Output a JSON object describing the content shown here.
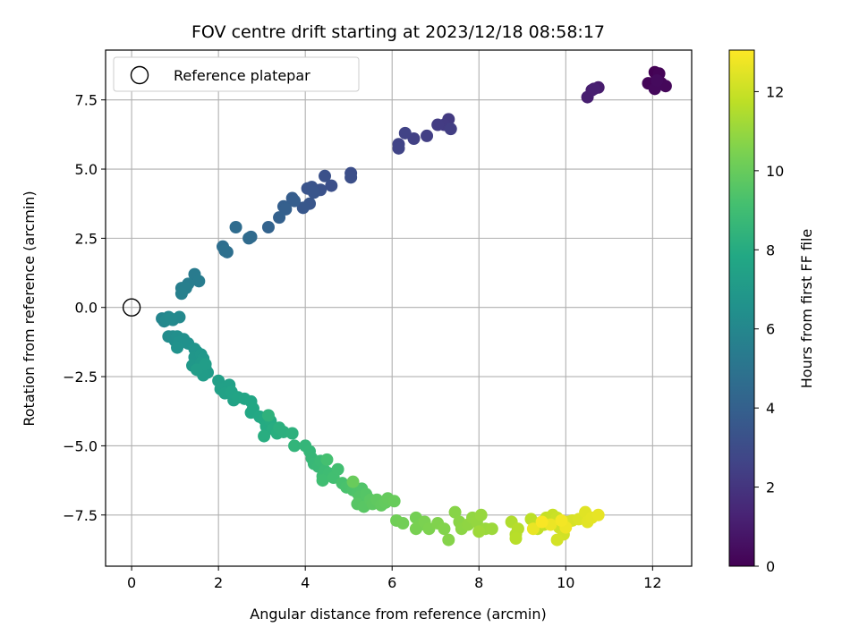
{
  "chart_data": {
    "type": "scatter",
    "title": "FOV centre drift starting at 2023/12/18 08:58:17",
    "xlabel": "Angular distance from reference (arcmin)",
    "ylabel": "Rotation from reference (arcmin)",
    "xlim": [
      -0.6,
      12.9
    ],
    "ylim": [
      -9.35,
      9.3
    ],
    "xticks": [
      0,
      2,
      4,
      6,
      8,
      10,
      12
    ],
    "xtick_labels": [
      "0",
      "2",
      "4",
      "6",
      "8",
      "10",
      "12"
    ],
    "yticks": [
      -7.5,
      -5.0,
      -2.5,
      0.0,
      2.5,
      5.0,
      7.5
    ],
    "ytick_labels": [
      "−7.5",
      "−5.0",
      "−2.5",
      "0.0",
      "2.5",
      "5.0",
      "7.5"
    ],
    "grid": true,
    "legend": {
      "placement": "upper-left",
      "entries": [
        "Reference platepar"
      ]
    },
    "reference_point": {
      "x": 0.0,
      "y": 0.0
    },
    "colorbar": {
      "label": "Hours from first FF file",
      "range": [
        0,
        13.05
      ],
      "ticks": [
        0,
        2,
        4,
        6,
        8,
        10,
        12
      ],
      "tick_labels": [
        "0",
        "2",
        "4",
        "6",
        "8",
        "10",
        "12"
      ],
      "colormap": "viridis"
    },
    "series": [
      {
        "points": [
          [
            12.05,
            8.5,
            0.0
          ],
          [
            12.1,
            8.3,
            0.05
          ],
          [
            12.15,
            8.45,
            0.1
          ],
          [
            11.9,
            8.1,
            0.15
          ],
          [
            12.2,
            8.1,
            0.2
          ],
          [
            12.3,
            8.0,
            0.25
          ],
          [
            12.05,
            7.9,
            0.3
          ],
          [
            12.1,
            8.2,
            0.35
          ],
          [
            10.75,
            7.95,
            1.0
          ],
          [
            10.6,
            7.85,
            1.05
          ],
          [
            10.5,
            7.6,
            1.1
          ],
          [
            10.65,
            7.9,
            1.15
          ],
          [
            7.3,
            6.8,
            2.2
          ],
          [
            7.2,
            6.6,
            2.25
          ],
          [
            7.05,
            6.6,
            2.3
          ],
          [
            7.35,
            6.45,
            2.35
          ],
          [
            6.8,
            6.2,
            2.4
          ],
          [
            6.5,
            6.1,
            2.5
          ],
          [
            6.3,
            6.3,
            2.55
          ],
          [
            6.15,
            5.9,
            2.6
          ],
          [
            6.15,
            5.75,
            2.65
          ],
          [
            5.05,
            4.85,
            3.1
          ],
          [
            5.05,
            4.7,
            3.15
          ],
          [
            4.6,
            4.4,
            3.2
          ],
          [
            4.45,
            4.75,
            3.25
          ],
          [
            4.35,
            4.25,
            3.3
          ],
          [
            4.15,
            4.35,
            3.35
          ],
          [
            4.05,
            4.3,
            3.4
          ],
          [
            4.2,
            4.15,
            3.45
          ],
          [
            4.1,
            3.75,
            3.5
          ],
          [
            3.95,
            3.6,
            3.55
          ],
          [
            3.7,
            3.95,
            3.8
          ],
          [
            3.75,
            3.85,
            3.85
          ],
          [
            3.5,
            3.65,
            3.9
          ],
          [
            3.55,
            3.55,
            3.95
          ],
          [
            3.4,
            3.25,
            4.0
          ],
          [
            3.15,
            2.9,
            4.1
          ],
          [
            2.75,
            2.55,
            4.5
          ],
          [
            2.7,
            2.5,
            4.55
          ],
          [
            2.4,
            2.9,
            4.6
          ],
          [
            2.1,
            2.2,
            4.7
          ],
          [
            2.2,
            2.0,
            4.75
          ],
          [
            2.15,
            2.05,
            4.8
          ],
          [
            1.45,
            1.2,
            5.4
          ],
          [
            1.55,
            0.95,
            5.45
          ],
          [
            1.3,
            0.85,
            5.5
          ],
          [
            1.15,
            0.7,
            5.55
          ],
          [
            1.25,
            0.7,
            5.6
          ],
          [
            1.15,
            0.5,
            5.65
          ],
          [
            0.7,
            -0.4,
            5.9
          ],
          [
            0.75,
            -0.5,
            5.95
          ],
          [
            0.85,
            -0.35,
            6.0
          ],
          [
            0.95,
            -0.45,
            6.05
          ],
          [
            1.1,
            -0.35,
            6.1
          ],
          [
            0.8,
            -0.45,
            6.12
          ],
          [
            0.9,
            -0.4,
            6.15
          ],
          [
            0.85,
            -1.05,
            6.25
          ],
          [
            0.95,
            -1.05,
            6.3
          ],
          [
            1.0,
            -1.2,
            6.35
          ],
          [
            1.05,
            -1.05,
            6.4
          ],
          [
            1.2,
            -1.15,
            6.45
          ],
          [
            1.1,
            -1.25,
            6.5
          ],
          [
            1.3,
            -1.3,
            6.55
          ],
          [
            1.05,
            -1.45,
            6.6
          ],
          [
            1.45,
            -1.5,
            6.7
          ],
          [
            1.5,
            -1.6,
            6.75
          ],
          [
            1.45,
            -1.8,
            6.8
          ],
          [
            1.6,
            -1.7,
            6.85
          ],
          [
            1.65,
            -1.85,
            6.9
          ],
          [
            1.4,
            -2.1,
            6.95
          ],
          [
            1.6,
            -2.0,
            7.0
          ],
          [
            1.7,
            -2.2,
            7.05
          ],
          [
            1.75,
            -2.35,
            7.1
          ],
          [
            1.65,
            -2.45,
            7.15
          ],
          [
            1.5,
            -2.25,
            7.18
          ],
          [
            1.7,
            -2.05,
            7.2
          ],
          [
            2.0,
            -2.65,
            7.3
          ],
          [
            2.05,
            -2.95,
            7.35
          ],
          [
            2.25,
            -2.8,
            7.4
          ],
          [
            2.15,
            -3.1,
            7.45
          ],
          [
            2.35,
            -3.35,
            7.5
          ],
          [
            2.3,
            -3.05,
            7.55
          ],
          [
            2.45,
            -3.25,
            7.6
          ],
          [
            2.6,
            -3.3,
            7.65
          ],
          [
            2.75,
            -3.4,
            7.7
          ],
          [
            2.8,
            -3.65,
            7.75
          ],
          [
            2.75,
            -3.8,
            7.8
          ],
          [
            2.95,
            -3.95,
            7.85
          ],
          [
            3.05,
            -4.05,
            7.9
          ],
          [
            3.1,
            -4.3,
            7.95
          ],
          [
            3.2,
            -4.1,
            8.0
          ],
          [
            3.25,
            -4.4,
            8.05
          ],
          [
            3.05,
            -4.65,
            8.1
          ],
          [
            3.35,
            -4.55,
            8.15
          ],
          [
            3.4,
            -4.35,
            8.2
          ],
          [
            3.5,
            -4.5,
            8.25
          ],
          [
            3.7,
            -4.55,
            8.3
          ],
          [
            3.15,
            -3.9,
            8.35
          ],
          [
            3.75,
            -5.0,
            8.5
          ],
          [
            4.0,
            -5.0,
            8.55
          ],
          [
            4.1,
            -5.2,
            8.6
          ],
          [
            4.15,
            -5.45,
            8.65
          ],
          [
            4.2,
            -5.65,
            8.7
          ],
          [
            4.3,
            -5.75,
            8.75
          ],
          [
            4.35,
            -5.55,
            8.8
          ],
          [
            4.45,
            -5.9,
            8.85
          ],
          [
            4.4,
            -6.1,
            8.9
          ],
          [
            4.55,
            -6.0,
            8.95
          ],
          [
            4.4,
            -6.25,
            9.0
          ],
          [
            4.65,
            -6.15,
            9.05
          ],
          [
            4.75,
            -5.85,
            9.1
          ],
          [
            4.5,
            -5.5,
            9.12
          ],
          [
            4.85,
            -6.35,
            9.2
          ],
          [
            4.95,
            -6.5,
            9.25
          ],
          [
            5.05,
            -6.45,
            9.3
          ],
          [
            5.1,
            -6.6,
            9.35
          ],
          [
            5.2,
            -6.7,
            9.4
          ],
          [
            5.3,
            -6.55,
            9.45
          ],
          [
            5.25,
            -6.85,
            9.5
          ],
          [
            5.4,
            -6.75,
            9.55
          ],
          [
            5.2,
            -7.1,
            9.6
          ],
          [
            5.35,
            -7.2,
            9.65
          ],
          [
            5.5,
            -6.95,
            9.7
          ],
          [
            5.55,
            -7.1,
            9.75
          ],
          [
            5.65,
            -6.95,
            9.8
          ],
          [
            5.75,
            -7.15,
            9.85
          ],
          [
            5.85,
            -7.05,
            9.9
          ],
          [
            5.9,
            -6.9,
            9.95
          ],
          [
            6.05,
            -7.0,
            10.0
          ],
          [
            5.1,
            -6.3,
            10.02
          ],
          [
            6.1,
            -7.7,
            10.2
          ],
          [
            6.25,
            -7.8,
            10.25
          ],
          [
            6.55,
            -7.6,
            10.3
          ],
          [
            6.65,
            -7.85,
            10.35
          ],
          [
            6.55,
            -8.0,
            10.4
          ],
          [
            6.75,
            -7.75,
            10.45
          ],
          [
            6.85,
            -8.0,
            10.5
          ],
          [
            7.05,
            -7.8,
            10.55
          ],
          [
            7.2,
            -8.0,
            10.6
          ],
          [
            7.3,
            -8.4,
            10.65
          ],
          [
            7.45,
            -7.4,
            10.7
          ],
          [
            7.55,
            -7.75,
            10.75
          ],
          [
            7.6,
            -8.0,
            10.8
          ],
          [
            7.75,
            -7.85,
            10.85
          ],
          [
            7.85,
            -7.6,
            10.9
          ],
          [
            7.95,
            -7.75,
            10.95
          ],
          [
            8.05,
            -7.5,
            11.0
          ],
          [
            8.15,
            -8.0,
            11.05
          ],
          [
            8.3,
            -8.0,
            11.1
          ],
          [
            8.0,
            -8.1,
            11.15
          ],
          [
            8.75,
            -7.75,
            11.5
          ],
          [
            8.85,
            -8.2,
            11.55
          ],
          [
            8.9,
            -8.0,
            11.6
          ],
          [
            8.85,
            -8.35,
            11.65
          ],
          [
            9.2,
            -7.65,
            11.7
          ],
          [
            9.3,
            -7.8,
            11.75
          ],
          [
            9.35,
            -8.0,
            11.8
          ],
          [
            9.5,
            -7.85,
            11.85
          ],
          [
            9.55,
            -7.6,
            11.9
          ],
          [
            9.7,
            -7.5,
            11.95
          ],
          [
            9.8,
            -7.6,
            12.0
          ],
          [
            9.75,
            -7.8,
            12.05
          ],
          [
            9.85,
            -7.95,
            12.1
          ],
          [
            9.95,
            -8.2,
            12.15
          ],
          [
            9.8,
            -8.4,
            12.2
          ],
          [
            10.05,
            -7.75,
            12.25
          ],
          [
            10.15,
            -7.7,
            12.3
          ],
          [
            10.3,
            -7.65,
            12.35
          ],
          [
            10.45,
            -7.4,
            12.45
          ],
          [
            10.5,
            -7.75,
            12.5
          ],
          [
            10.6,
            -7.6,
            12.55
          ],
          [
            10.75,
            -7.5,
            12.6
          ],
          [
            9.25,
            -8.0,
            12.65
          ],
          [
            9.65,
            -7.85,
            12.7
          ],
          [
            10.0,
            -7.95,
            12.75
          ],
          [
            9.9,
            -7.7,
            12.85
          ],
          [
            9.45,
            -7.75,
            12.95
          ]
        ]
      }
    ]
  }
}
